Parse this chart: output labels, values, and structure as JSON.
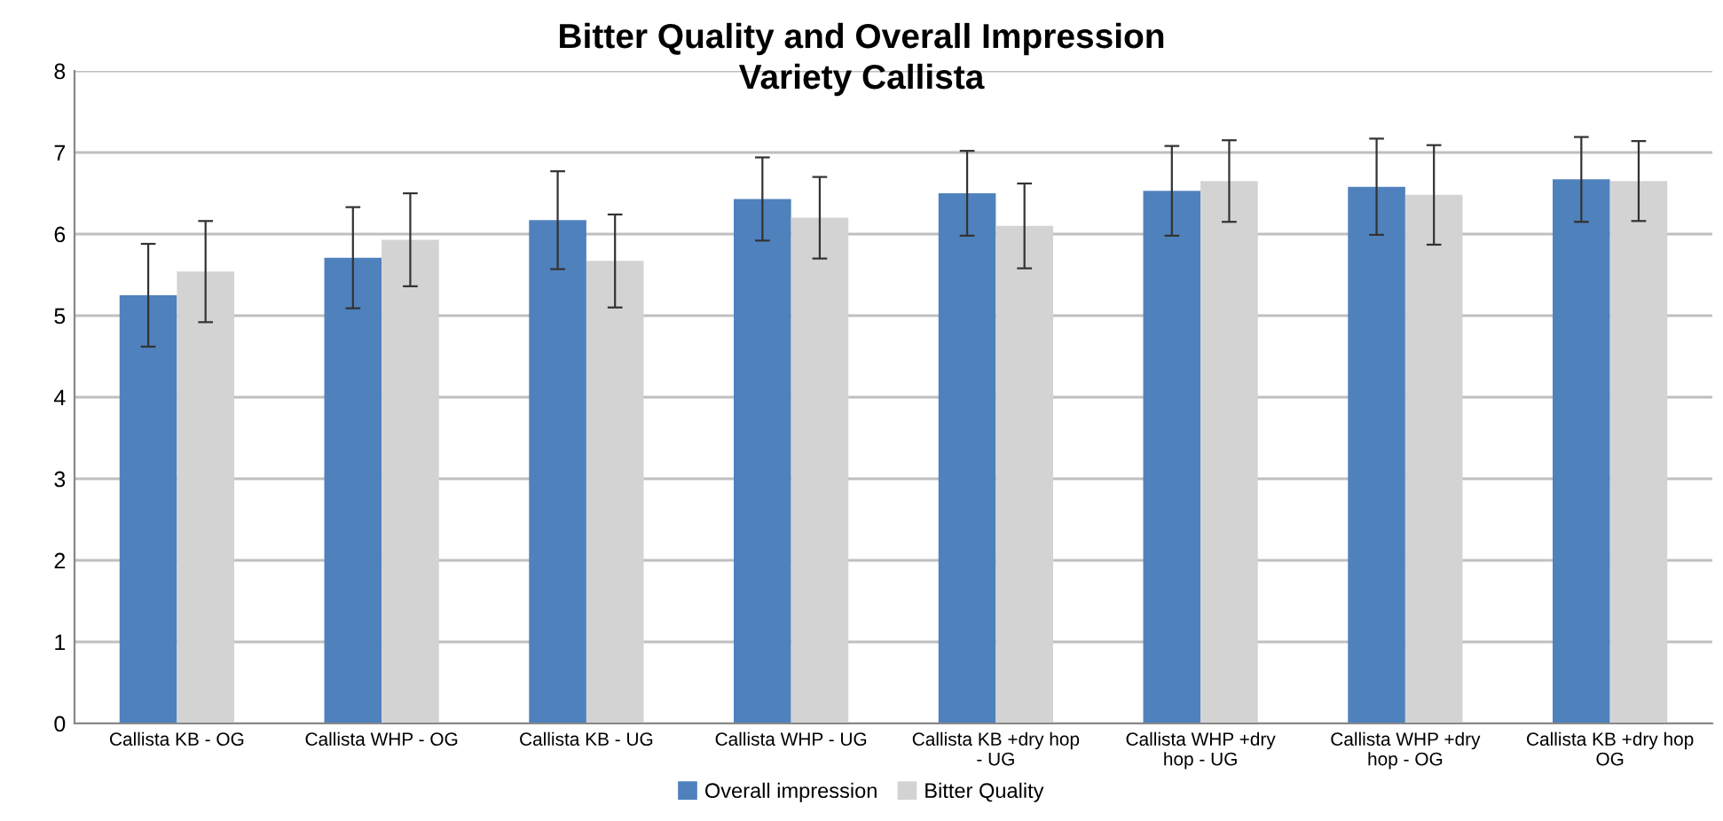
{
  "chart_data": {
    "type": "bar",
    "title": "Bitter Quality and Overall Impression",
    "subtitle": "Variety Callista",
    "categories": [
      "Callista KB - OG",
      "Callista WHP - OG",
      "Callista KB - UG",
      "Callista WHP - UG",
      "Callista KB +dry hop - UG",
      "Callista WHP +dry hop - UG",
      "Callista WHP +dry hop - OG",
      "Callista KB +dry hop OG"
    ],
    "series": [
      {
        "name": "Overall impression",
        "color": "#4f81bd",
        "values": [
          5.25,
          5.71,
          6.17,
          6.43,
          6.5,
          6.53,
          6.58,
          6.67
        ],
        "errors": [
          0.63,
          0.62,
          0.6,
          0.51,
          0.52,
          0.55,
          0.59,
          0.52
        ]
      },
      {
        "name": "Bitter Quality",
        "color": "#d3d3d3",
        "values": [
          5.54,
          5.93,
          5.67,
          6.2,
          6.1,
          6.65,
          6.48,
          6.65
        ],
        "errors": [
          0.62,
          0.57,
          0.57,
          0.5,
          0.52,
          0.5,
          0.61,
          0.49
        ]
      }
    ],
    "ylim": [
      0,
      8
    ],
    "yticks": [
      0,
      1,
      2,
      3,
      4,
      5,
      6,
      7,
      8
    ],
    "grid": "y",
    "legend": "bottom"
  }
}
